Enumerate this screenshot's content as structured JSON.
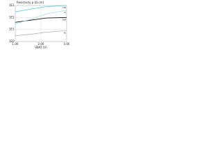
{
  "chart_data": {
    "type": "line",
    "title": "Resistivity ρ (Ω cm)",
    "x_label": "VBAT (V)",
    "x": [
      1.0,
      1.6,
      2.2,
      3.0
    ],
    "series": [
      {
        "name": "TiN",
        "color": "#5bc8e8",
        "values": [
          300,
          500,
          800,
          1000
        ]
      },
      {
        "name": "TaN",
        "color": "#000000",
        "values": [
          40,
          60,
          90,
          100
        ]
      },
      {
        "name": "Si",
        "color": "#9fdcef",
        "values": [
          30,
          70,
          200,
          400
        ]
      },
      {
        "name": "Ni",
        "color": "#b0b0b0",
        "values": [
          3,
          4,
          6,
          8
        ]
      }
    ],
    "xlim": [
      1.0,
      3.0
    ],
    "xticks": [
      {
        "value": 1.0,
        "label": "1.00"
      },
      {
        "value": 2.0,
        "label": "2.00"
      },
      {
        "value": 3.0,
        "label": "3.00"
      }
    ],
    "ylim": [
      1,
      1000
    ],
    "yticks": [
      {
        "value": 1,
        "label": "1E0"
      },
      {
        "value": 10,
        "label": "1E1"
      },
      {
        "value": 100,
        "label": "1E2"
      },
      {
        "value": 1000,
        "label": "1E3"
      }
    ],
    "log_y": true,
    "grid": true
  }
}
